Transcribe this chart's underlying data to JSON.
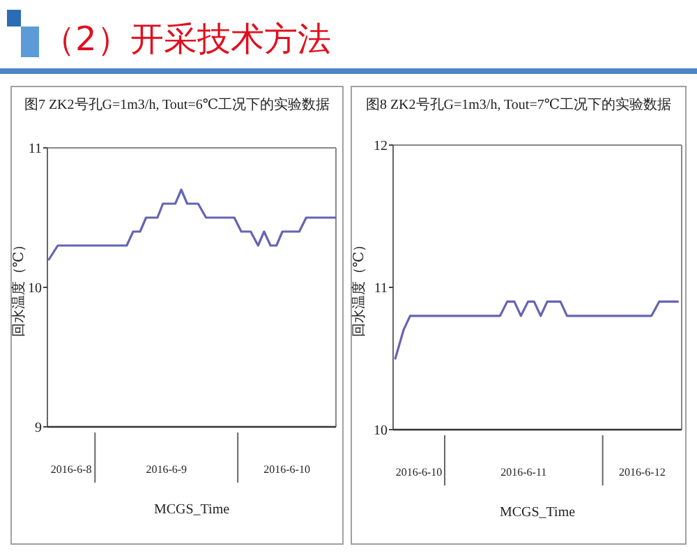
{
  "chart_data": [
    {
      "type": "other",
      "title": "（2）开采技术方法"
    },
    {
      "type": "line",
      "title": "图7  ZK2号孔G=1m3/h, Tout=6℃工况下的实验数据",
      "xlabel": "MCGS_Time",
      "ylabel": "回水温度（℃）",
      "color": "#6464b4",
      "x": [
        "2016-06-08T16:15",
        "2016-06-08T17:45",
        "2016-06-09T05:20",
        "2016-06-09T06:25",
        "2016-06-09T07:35",
        "2016-06-09T08:35",
        "2016-06-09T10:30",
        "2016-06-09T11:25",
        "2016-06-09T13:30",
        "2016-06-09T14:30",
        "2016-06-09T15:30",
        "2016-06-09T17:20",
        "2016-06-09T18:40",
        "2016-06-09T23:25",
        "2016-06-10T00:35",
        "2016-06-10T02:10",
        "2016-06-10T03:25",
        "2016-06-10T04:25",
        "2016-06-10T05:30",
        "2016-06-10T06:30",
        "2016-06-10T07:30",
        "2016-06-10T10:20",
        "2016-06-10T11:30",
        "2016-06-10T16:25"
      ],
      "values": [
        10.2,
        10.3,
        10.3,
        10.4,
        10.4,
        10.5,
        10.5,
        10.6,
        10.6,
        10.7,
        10.6,
        10.6,
        10.5,
        10.5,
        10.4,
        10.4,
        10.3,
        10.4,
        10.3,
        10.3,
        10.4,
        10.4,
        10.5,
        10.5
      ],
      "xlim": [
        "2016-06-08T16:00",
        "2016-06-10T16:30"
      ],
      "xticks": [
        {
          "value": "2016-06-08T20:00",
          "label": "2016-6-8"
        },
        {
          "value": "2016-06-09T12:00",
          "label": "2016-6-9"
        },
        {
          "value": "2016-06-10T08:15",
          "label": "2016-6-10"
        }
      ],
      "ylim": [
        9,
        11
      ],
      "yticks": [
        9,
        10,
        11
      ]
    },
    {
      "type": "line",
      "title": "图8  ZK2号孔G=1m3/h, Tout=7℃工况下的实验数据",
      "xlabel": "MCGS_Time",
      "ylabel": "回水温度（℃）",
      "color": "#6464b4",
      "x": [
        "2016-06-10T16:30",
        "2016-06-10T17:45",
        "2016-06-10T18:45",
        "2016-06-11T08:25",
        "2016-06-11T09:30",
        "2016-06-11T10:35",
        "2016-06-11T11:35",
        "2016-06-11T12:40",
        "2016-06-11T13:35",
        "2016-06-11T14:35",
        "2016-06-11T15:35",
        "2016-06-11T17:35",
        "2016-06-11T18:35",
        "2016-06-12T07:25",
        "2016-06-12T08:35",
        "2016-06-12T11:25"
      ],
      "values": [
        10.5,
        10.7,
        10.8,
        10.8,
        10.9,
        10.9,
        10.8,
        10.9,
        10.9,
        10.8,
        10.9,
        10.9,
        10.8,
        10.8,
        10.9,
        10.9
      ],
      "xlim": [
        "2016-06-10T16:10",
        "2016-06-12T12:00"
      ],
      "xticks": [
        {
          "value": "2016-06-10T20:05",
          "label": "2016-6-10"
        },
        {
          "value": "2016-06-11T12:00",
          "label": "2016-6-11"
        },
        {
          "value": "2016-06-12T06:00",
          "label": "2016-6-12"
        }
      ],
      "ylim": [
        10,
        12
      ],
      "yticks": [
        10,
        11,
        12
      ]
    }
  ]
}
